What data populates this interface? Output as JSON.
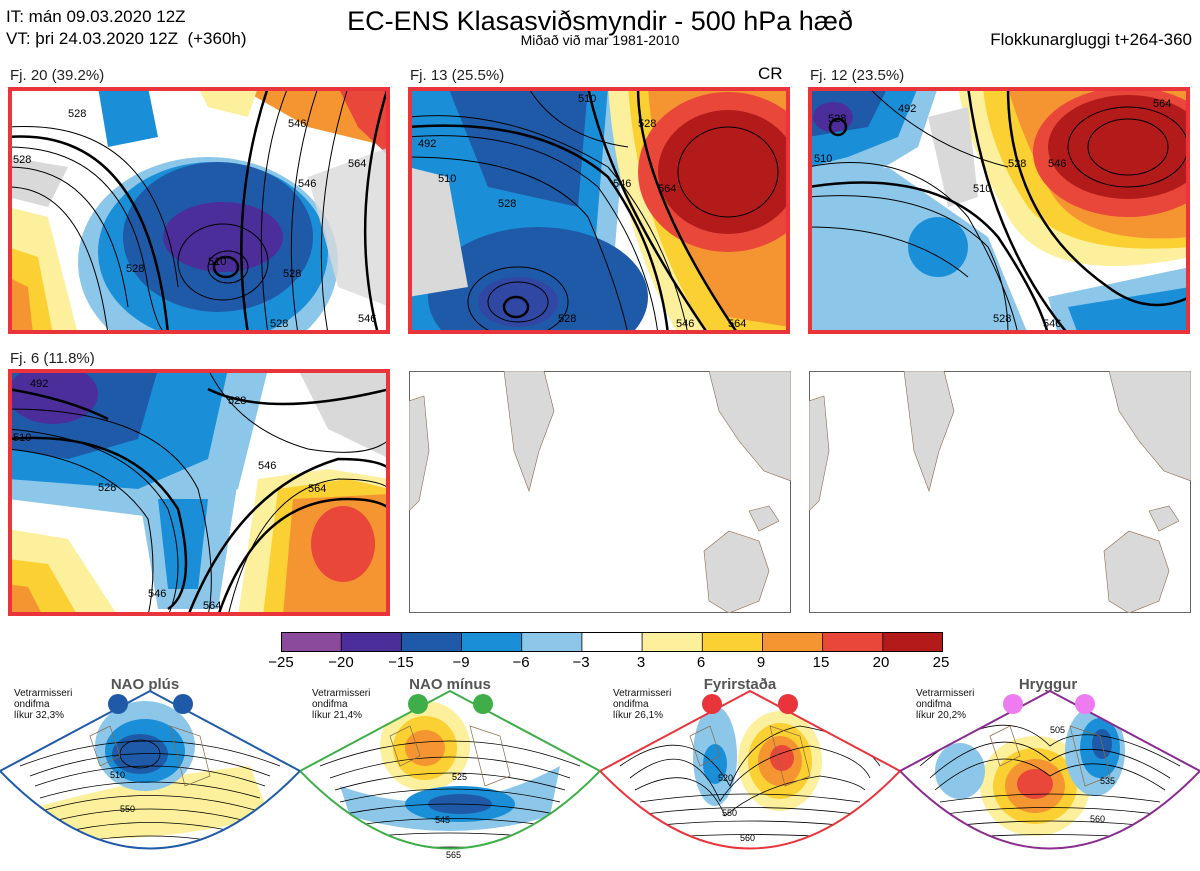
{
  "header": {
    "it_line": "IT: mán 09.03.2020 12Z",
    "vt_line": "VT: þri 24.03.2020 12Z  (+360h)",
    "title": "EC-ENS Klasasviðsmyndir - 500 hPa hæð",
    "subtitle": "Miðað við mar 1981-2010",
    "window": "Flokkunargluggi t+264-360"
  },
  "panels": [
    {
      "label": "Fj. 20 (39.2%)",
      "tag": "",
      "contours": [
        "528",
        "546",
        "564",
        "510",
        "528",
        "528",
        "528",
        "546",
        "546",
        "528"
      ]
    },
    {
      "label": "Fj. 13 (25.5%)",
      "tag": "CR",
      "contours": [
        "510",
        "492",
        "510",
        "528",
        "528",
        "546",
        "564",
        "528",
        "546",
        "564"
      ]
    },
    {
      "label": "Fj. 12 (23.5%)",
      "tag": "",
      "contours": [
        "492",
        "528",
        "510",
        "528",
        "546",
        "564",
        "510",
        "528",
        "546"
      ]
    },
    {
      "label": "Fj. 6 (11.8%)",
      "tag": "",
      "contours": [
        "492",
        "510",
        "528",
        "528",
        "546",
        "564",
        "546",
        "564"
      ]
    }
  ],
  "colorbar": {
    "colors": [
      "#8b4a9c",
      "#4b2e9a",
      "#1f5aa8",
      "#1a8fd8",
      "#8cc7ea",
      "#ffffff",
      "#fdf09c",
      "#fbd033",
      "#f59532",
      "#e8473a",
      "#b31b1b"
    ],
    "ticks": [
      "−25",
      "−20",
      "−15",
      "−9",
      "−6",
      "−3",
      "3",
      "6",
      "9",
      "15",
      "20",
      "25"
    ]
  },
  "regimes": [
    {
      "title": "NAO plús",
      "note": [
        "Vetrarmisseri",
        "ondifma",
        "líkur 32,3%"
      ],
      "border": "#1f5aa8",
      "dot": "#1f5aa8",
      "labels": [
        "510",
        "550"
      ]
    },
    {
      "title": "NAO mínus",
      "note": [
        "Vetrarmisseri",
        "ondifma",
        "líkur 21,4%"
      ],
      "border": "#3fae49",
      "dot": "#3fae49",
      "labels": [
        "525",
        "545",
        "565"
      ]
    },
    {
      "title": "Fyrirstaða",
      "note": [
        "Vetrarmisseri",
        "ondifma",
        "líkur 26,1%"
      ],
      "border": "#e8343a",
      "dot": "#e8343a",
      "labels": [
        "520",
        "550",
        "560"
      ]
    },
    {
      "title": "Hryggur",
      "note": [
        "Vetrarmisseri",
        "ondifma",
        "líkur 20,2%"
      ],
      "border": "#8a2b8f",
      "dot": "#ee7cf0",
      "labels": [
        "505",
        "535",
        "560"
      ]
    }
  ]
}
